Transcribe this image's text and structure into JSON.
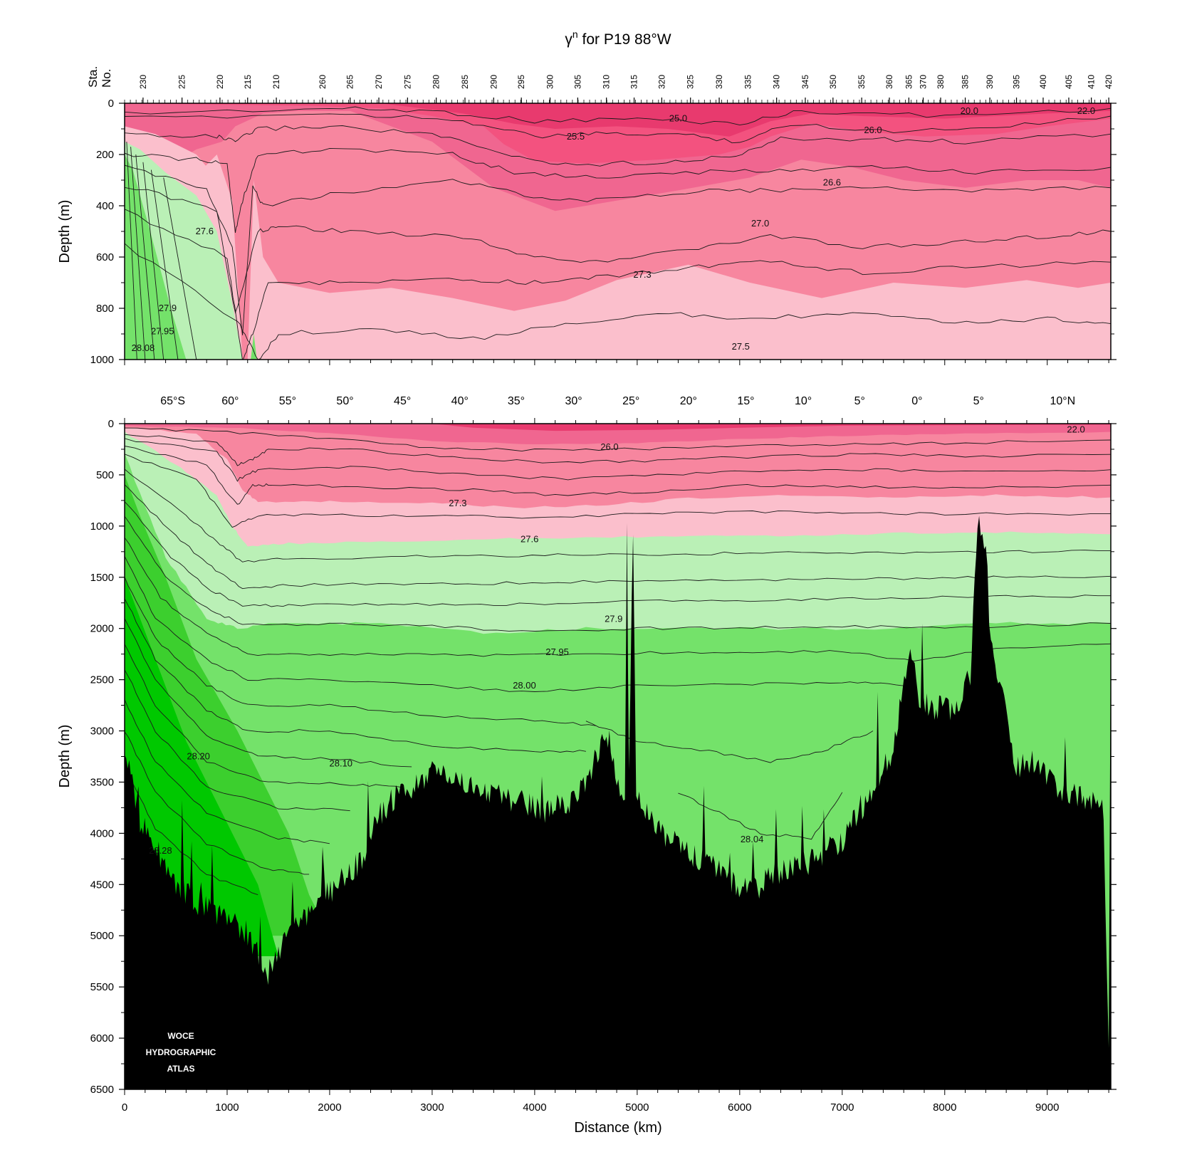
{
  "title_main": "γ",
  "title_sup": "n",
  "title_rest": " for P19 88°W",
  "logo": [
    "WOCE",
    "HYDROGRAPHIC",
    "ATLAS"
  ],
  "colors": {
    "magenta_dark": "#e83a6e",
    "magenta": "#f06690",
    "magenta_mid": "#f7869f",
    "pink_light": "#fbbfcc",
    "green_pale": "#baf0b6",
    "green_light": "#74e26a",
    "green_mid": "#3ccf2e",
    "green_dark": "#00c800",
    "bathymetry": "#000000",
    "contour": "#1a1a1a"
  },
  "chart_data": [
    {
      "type": "contour-section",
      "panel": "upper",
      "top_axis_label": [
        "Sta.",
        "No."
      ],
      "ylabel": "Depth (m)",
      "ylim": [
        0,
        1000
      ],
      "yticks": [
        0,
        200,
        400,
        600,
        800,
        1000
      ],
      "xlim": [
        0,
        9620
      ],
      "stations": [
        {
          "no": "230",
          "km": 180
        },
        {
          "no": "225",
          "km": 560
        },
        {
          "no": "220",
          "km": 930
        },
        {
          "no": "215",
          "km": 1200
        },
        {
          "no": "210",
          "km": 1480
        },
        {
          "no": "260",
          "km": 1930
        },
        {
          "no": "265",
          "km": 2200
        },
        {
          "no": "270",
          "km": 2480
        },
        {
          "no": "275",
          "km": 2760
        },
        {
          "no": "280",
          "km": 3040
        },
        {
          "no": "285",
          "km": 3320
        },
        {
          "no": "290",
          "km": 3600
        },
        {
          "no": "295",
          "km": 3870
        },
        {
          "no": "300",
          "km": 4150
        },
        {
          "no": "305",
          "km": 4420
        },
        {
          "no": "310",
          "km": 4700
        },
        {
          "no": "315",
          "km": 4970
        },
        {
          "no": "320",
          "km": 5240
        },
        {
          "no": "325",
          "km": 5520
        },
        {
          "no": "330",
          "km": 5800
        },
        {
          "no": "335",
          "km": 6080
        },
        {
          "no": "340",
          "km": 6360
        },
        {
          "no": "345",
          "km": 6640
        },
        {
          "no": "350",
          "km": 6910
        },
        {
          "no": "355",
          "km": 7190
        },
        {
          "no": "360",
          "km": 7460
        },
        {
          "no": "365",
          "km": 7650
        },
        {
          "no": "370",
          "km": 7790
        },
        {
          "no": "380",
          "km": 7960
        },
        {
          "no": "385",
          "km": 8200
        },
        {
          "no": "390",
          "km": 8440
        },
        {
          "no": "395",
          "km": 8700
        },
        {
          "no": "400",
          "km": 8960
        },
        {
          "no": "405",
          "km": 9210
        },
        {
          "no": "410",
          "km": 9430
        },
        {
          "no": "420",
          "km": 9600
        }
      ],
      "contour_labels": [
        {
          "text": "25.0",
          "km": 5400,
          "depth": 60
        },
        {
          "text": "25.5",
          "km": 4400,
          "depth": 130
        },
        {
          "text": "26.0",
          "km": 7300,
          "depth": 105
        },
        {
          "text": "20.0",
          "km": 8240,
          "depth": 30
        },
        {
          "text": "22.0",
          "km": 9380,
          "depth": 30
        },
        {
          "text": "26.6",
          "km": 6900,
          "depth": 310
        },
        {
          "text": "27.0",
          "km": 6200,
          "depth": 470
        },
        {
          "text": "27.3",
          "km": 5050,
          "depth": 670
        },
        {
          "text": "27.5",
          "km": 6010,
          "depth": 950
        },
        {
          "text": "27.6",
          "km": 780,
          "depth": 500
        },
        {
          "text": "27.9",
          "km": 420,
          "depth": 800
        },
        {
          "text": "27.95",
          "km": 370,
          "depth": 890
        },
        {
          "text": "28.08",
          "km": 180,
          "depth": 955
        }
      ]
    },
    {
      "type": "contour-section",
      "panel": "lower",
      "xlabel": "Distance (km)",
      "ylabel": "Depth (m)",
      "xlim": [
        0,
        9620
      ],
      "ylim": [
        0,
        6500
      ],
      "xticks": [
        0,
        1000,
        2000,
        3000,
        4000,
        5000,
        6000,
        7000,
        8000,
        9000
      ],
      "yticks": [
        0,
        500,
        1000,
        1500,
        2000,
        2500,
        3000,
        3500,
        4000,
        4500,
        5000,
        5500,
        6000,
        6500
      ],
      "latitude_labels": [
        {
          "text": "65°S",
          "km": 470
        },
        {
          "text": "60°",
          "km": 1030
        },
        {
          "text": "55°",
          "km": 1590
        },
        {
          "text": "50°",
          "km": 2150
        },
        {
          "text": "45°",
          "km": 2710
        },
        {
          "text": "40°",
          "km": 3270
        },
        {
          "text": "35°",
          "km": 3820
        },
        {
          "text": "30°",
          "km": 4380
        },
        {
          "text": "25°",
          "km": 4940
        },
        {
          "text": "20°",
          "km": 5500
        },
        {
          "text": "15°",
          "km": 6060
        },
        {
          "text": "10°",
          "km": 6620
        },
        {
          "text": "5°",
          "km": 7170
        },
        {
          "text": "0°",
          "km": 7730
        },
        {
          "text": "5°",
          "km": 8330
        },
        {
          "text": "10°N",
          "km": 9150
        }
      ],
      "contour_labels": [
        {
          "text": "22.0",
          "km": 9280,
          "depth": 60
        },
        {
          "text": "26.0",
          "km": 4730,
          "depth": 230
        },
        {
          "text": "27.3",
          "km": 3250,
          "depth": 780
        },
        {
          "text": "27.6",
          "km": 3950,
          "depth": 1130
        },
        {
          "text": "27.9",
          "km": 4770,
          "depth": 1910
        },
        {
          "text": "27.95",
          "km": 4220,
          "depth": 2230
        },
        {
          "text": "28.00",
          "km": 3900,
          "depth": 2560
        },
        {
          "text": "28.20",
          "km": 720,
          "depth": 3250
        },
        {
          "text": "28.10",
          "km": 2110,
          "depth": 3320
        },
        {
          "text": "28.04",
          "km": 6120,
          "depth": 4060
        },
        {
          "text": "28.28",
          "km": 350,
          "depth": 4170
        }
      ]
    }
  ]
}
